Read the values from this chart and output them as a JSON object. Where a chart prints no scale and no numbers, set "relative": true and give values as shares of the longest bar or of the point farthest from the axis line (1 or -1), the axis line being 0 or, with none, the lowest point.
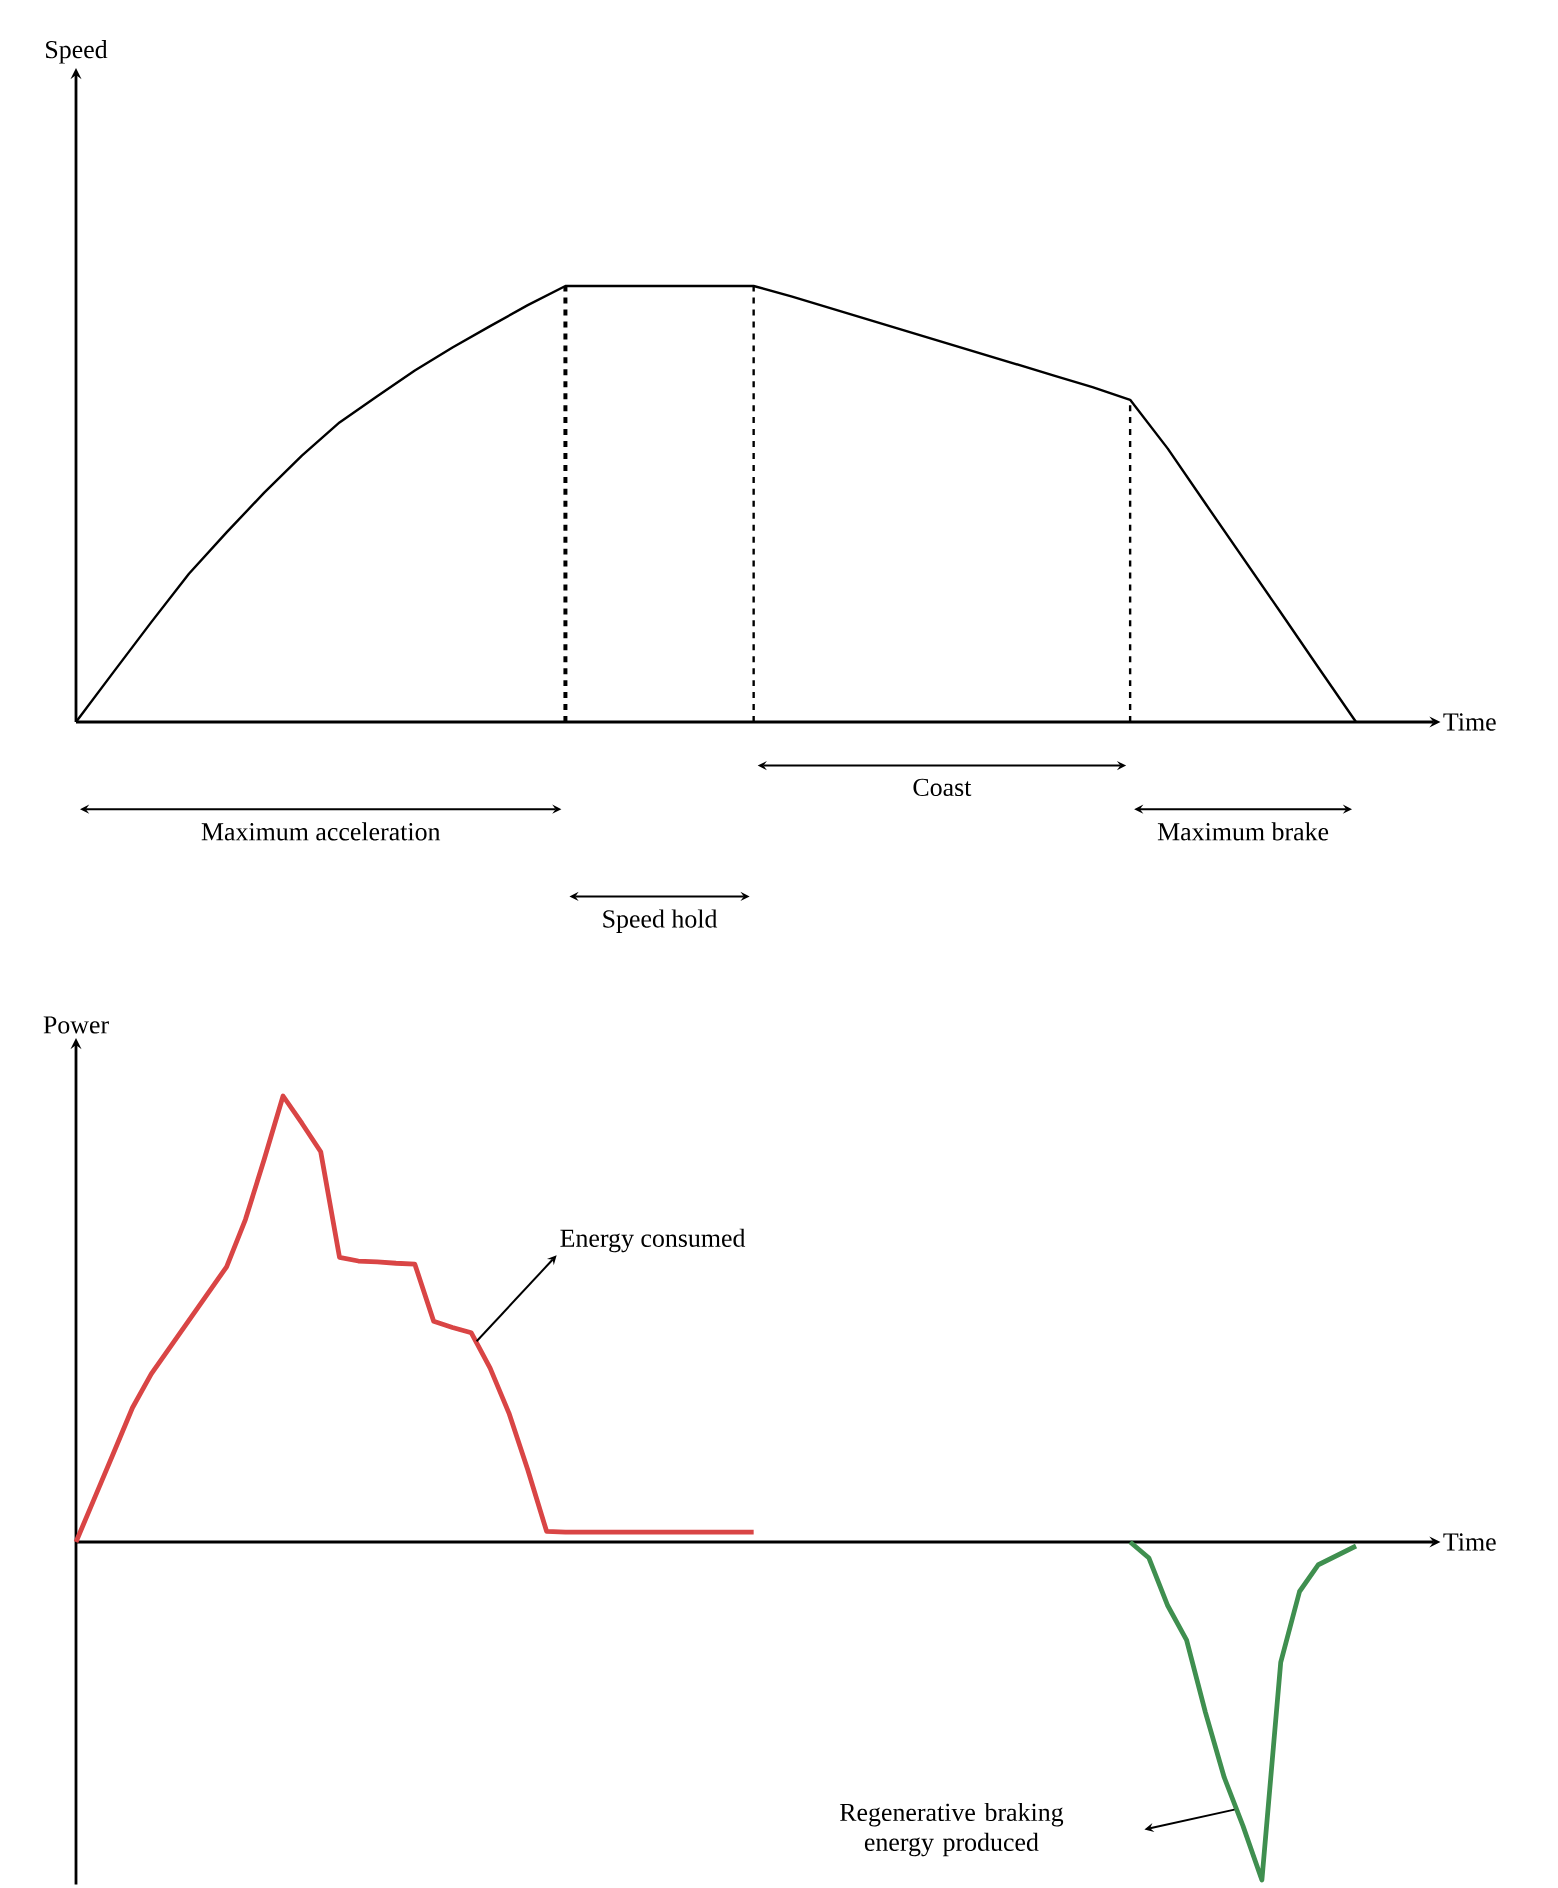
{
  "chart_data": [
    {
      "type": "line",
      "xlabel": "Time",
      "ylabel": "Speed",
      "relative": true,
      "categories": [
        null,
        null,
        null,
        null,
        null,
        null,
        null,
        null,
        null,
        null,
        null,
        null,
        null,
        null,
        null,
        null,
        null,
        null,
        null,
        null,
        null,
        null,
        null,
        null,
        null,
        null,
        null,
        null,
        null,
        null,
        null,
        null,
        null,
        null,
        null
      ],
      "series": [
        {
          "color": "#000000",
          "line_style": "solid",
          "values": [
            0,
            0.115,
            0.229,
            0.34,
            0.435,
            0.526,
            0.611,
            0.687,
            0.747,
            0.806,
            0.859,
            0.908,
            0.956,
            1,
            1,
            1,
            1,
            1,
            1,
            0.976,
            0.95,
            0.924,
            0.898,
            0.872,
            0.846,
            0.82,
            0.794,
            0.768,
            0.739,
            0.627,
            0.501,
            0.376,
            0.251,
            0.125,
            0
          ]
        }
      ],
      "annotations": [
        "Maximum acceleration",
        "Speed hold",
        "Coast",
        "Maximum brake"
      ]
    },
    {
      "type": "line",
      "xlabel": "Time",
      "ylabel": "Power",
      "relative": true,
      "categories": [
        null,
        null,
        null,
        null,
        null,
        null,
        null,
        null,
        null,
        null,
        null,
        null,
        null,
        null,
        null,
        null,
        null,
        null,
        null,
        null,
        null,
        null,
        null,
        null,
        null,
        null,
        null,
        null,
        null,
        null,
        null,
        null,
        null,
        null,
        null,
        null,
        null,
        null,
        null,
        null,
        null,
        null,
        null,
        null,
        null,
        null,
        null,
        null,
        null,
        null,
        null,
        null,
        null,
        null,
        null,
        null,
        null,
        null,
        null,
        null,
        null,
        null,
        null,
        null,
        null,
        null,
        null,
        null,
        null
      ],
      "series": [
        {
          "color": "#d94545",
          "line_style": "solid",
          "values": [
            0,
            0.1,
            0.2,
            0.301,
            0.377,
            0.437,
            0.497,
            0.557,
            0.617,
            0.723,
            0.858,
            1,
            0.939,
            0.875,
            0.638,
            0.63,
            0.628,
            0.625,
            0.623,
            0.495,
            0.481,
            0.469,
            0.39,
            0.289,
            0.162,
            0.024,
            0.022,
            0.022,
            0.022,
            0.022,
            0.022,
            0.022,
            0.022,
            0.022,
            0.022,
            0.022,
            0.022,
            null,
            null,
            null,
            null,
            null,
            null,
            null,
            null,
            null,
            null,
            null,
            null,
            null,
            null,
            null,
            null,
            null,
            null,
            null,
            null,
            null,
            null,
            null,
            null,
            null,
            null,
            null,
            null,
            null,
            null,
            null,
            null
          ]
        },
        {
          "color": "#3f8f4f",
          "line_style": "solid",
          "values": [
            null,
            null,
            null,
            null,
            null,
            null,
            null,
            null,
            null,
            null,
            null,
            null,
            null,
            null,
            null,
            null,
            null,
            null,
            null,
            null,
            null,
            null,
            null,
            null,
            null,
            null,
            null,
            null,
            null,
            null,
            null,
            null,
            null,
            null,
            null,
            null,
            null,
            null,
            null,
            null,
            null,
            null,
            null,
            null,
            null,
            null,
            null,
            null,
            null,
            null,
            null,
            null,
            null,
            null,
            null,
            null,
            0,
            -0.036,
            -0.143,
            -0.22,
            -0.382,
            -0.528,
            -0.637,
            -0.758,
            -0.27,
            -0.111,
            -0.051,
            -0.03,
            -0.009
          ]
        }
      ],
      "annotations": [
        "Energy consumed",
        "Regenerative braking energy produced"
      ]
    }
  ]
}
